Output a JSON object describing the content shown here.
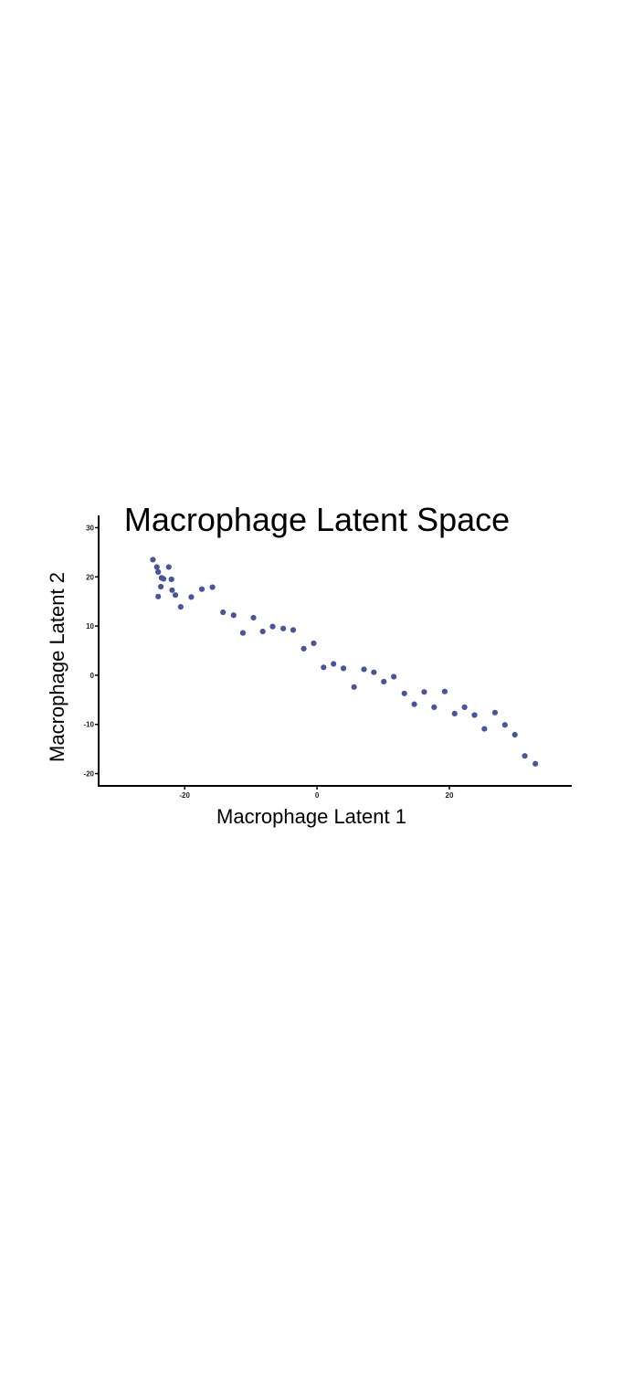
{
  "chart_data": {
    "type": "scatter",
    "title": "Macrophage Latent Space",
    "xlabel": "Macrophage Latent 1",
    "ylabel": "Macrophage Latent 2",
    "xlim": [
      -33,
      38.5
    ],
    "ylim": [
      -22.5,
      32.5
    ],
    "xticks": [
      -20,
      0,
      20
    ],
    "xtick_labels": [
      "-20",
      "0",
      "20"
    ],
    "yticks": [
      -20,
      -10,
      0,
      10,
      20,
      30
    ],
    "ytick_labels": [
      "-20",
      "-10",
      "0",
      "10",
      "20",
      "30"
    ],
    "grid": false,
    "point_color": "#4a5597",
    "series": [
      {
        "x": [
          -24.8,
          -24.2,
          -24.0,
          -24.0,
          -23.6,
          -23.5,
          -23.2,
          -22.4,
          -22.0,
          -21.9,
          -21.4,
          -20.6,
          -19.0,
          -17.4,
          -15.8,
          -14.2,
          -12.6,
          -11.2,
          -9.6,
          -8.2,
          -6.7,
          -5.1,
          -3.6,
          -2.0,
          -0.5,
          1.0,
          2.5,
          4.0,
          5.6,
          7.1,
          8.6,
          10.1,
          11.6,
          13.2,
          14.7,
          16.2,
          17.7,
          19.3,
          20.8,
          22.3,
          23.8,
          25.3,
          26.9,
          28.4,
          29.9,
          31.4,
          33.0
        ],
        "y": [
          23.5,
          22.0,
          21.0,
          16.0,
          18.0,
          19.8,
          19.6,
          22.0,
          19.5,
          17.3,
          16.3,
          13.9,
          15.9,
          17.5,
          17.9,
          12.8,
          12.2,
          8.6,
          11.7,
          8.9,
          9.9,
          9.5,
          9.2,
          5.4,
          6.5,
          1.6,
          2.3,
          1.4,
          -2.4,
          1.2,
          0.6,
          -1.3,
          -0.3,
          -3.7,
          -5.9,
          -3.4,
          -6.5,
          -3.3,
          -7.8,
          -6.5,
          -8.1,
          -10.9,
          -7.6,
          -10.1,
          -12.1,
          -16.4,
          -18.0
        ]
      }
    ]
  }
}
